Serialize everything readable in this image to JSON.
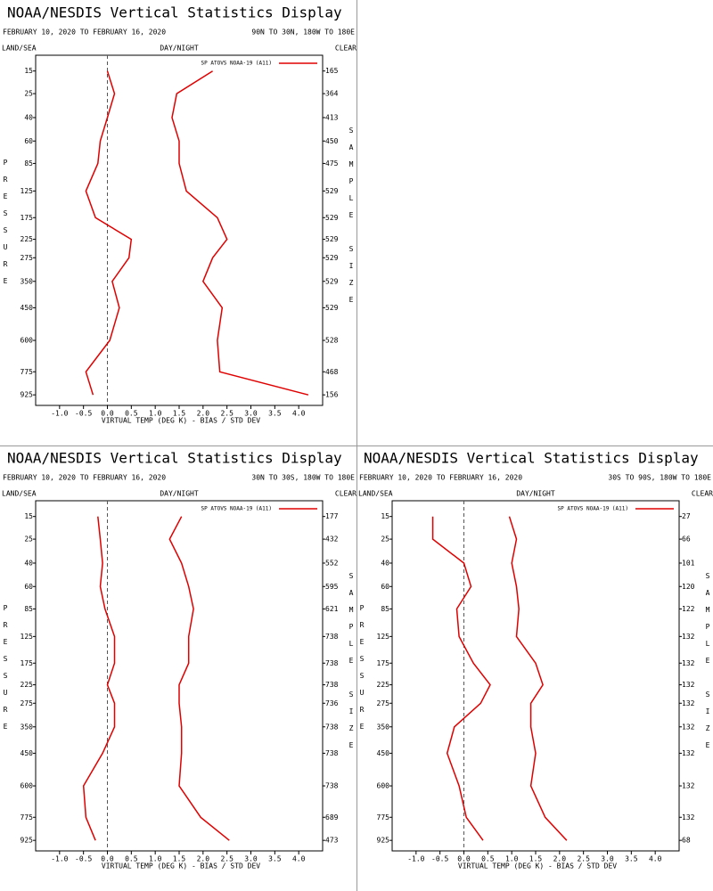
{
  "chart_data": [
    {
      "type": "line",
      "title": "NOAA/NESDIS Vertical Statistics Display",
      "period": "FEBRUARY 10, 2020 TO FEBRUARY 16, 2020",
      "region": "90N TO 30N, 180W TO 180E",
      "corner_labels": [
        "LAND/SEA",
        "DAY/NIGHT",
        "CLEAR"
      ],
      "xlabel": "VIRTUAL TEMP (DEG K) - BIAS / STD DEV",
      "ylabel": "PRESSURE",
      "y2label": "SAMPLE SIZE",
      "y": [
        15,
        25,
        40,
        60,
        85,
        125,
        175,
        225,
        275,
        350,
        450,
        600,
        775,
        925
      ],
      "yscale": "power",
      "ylim": [
        10,
        1000
      ],
      "yticks": [
        15,
        25,
        40,
        60,
        85,
        125,
        175,
        225,
        275,
        350,
        450,
        600,
        775,
        925
      ],
      "sample_sizes": [
        165,
        364,
        413,
        450,
        475,
        529,
        529,
        529,
        529,
        529,
        529,
        528,
        468,
        156
      ],
      "xlim": [
        -1.5,
        4.5
      ],
      "xticks": [
        {
          "value": -1,
          "label": "-1.0"
        },
        -0.5,
        {
          "value": 0,
          "label": "0.0"
        },
        0.5,
        {
          "value": 1,
          "label": "1.0"
        },
        1.5,
        {
          "value": 2,
          "label": "2.0"
        },
        2.5,
        {
          "value": 3,
          "label": "3.0"
        },
        3.5,
        {
          "value": 4,
          "label": "4.0"
        }
      ],
      "zero_line": true,
      "legend": "top-right",
      "series": [
        {
          "name": "SP ATOVS NOAA-19 (A11)",
          "color": "#e00000",
          "values": [
            0.0,
            0.15,
            0.0,
            -0.15,
            -0.2,
            -0.45,
            -0.25,
            0.5,
            0.45,
            0.1,
            0.25,
            0.05,
            -0.45,
            -0.3
          ]
        },
        {
          "color": "#e00000",
          "values": [
            2.2,
            1.45,
            1.35,
            1.5,
            1.5,
            1.65,
            2.3,
            2.5,
            2.2,
            2.0,
            2.4,
            2.3,
            2.35,
            4.2
          ]
        }
      ]
    },
    {
      "type": "line",
      "title": "NOAA/NESDIS Vertical Statistics Display",
      "period": "FEBRUARY 10, 2020 TO FEBRUARY 16, 2020",
      "region": "30N TO 30S, 180W TO 180E",
      "corner_labels": [
        "LAND/SEA",
        "DAY/NIGHT",
        "CLEAR"
      ],
      "xlabel": "VIRTUAL TEMP (DEG K) - BIAS / STD DEV",
      "ylabel": "PRESSURE",
      "y2label": "SAMPLE SIZE",
      "y": [
        15,
        25,
        40,
        60,
        85,
        125,
        175,
        225,
        275,
        350,
        450,
        600,
        775,
        925
      ],
      "yscale": "power",
      "ylim": [
        10,
        1000
      ],
      "yticks": [
        15,
        25,
        40,
        60,
        85,
        125,
        175,
        225,
        275,
        350,
        450,
        600,
        775,
        925
      ],
      "sample_sizes": [
        177,
        432,
        552,
        595,
        621,
        738,
        738,
        738,
        736,
        738,
        738,
        738,
        689,
        473
      ],
      "xlim": [
        -1.5,
        4.5
      ],
      "xticks": [
        {
          "value": -1,
          "label": "-1.0"
        },
        -0.5,
        {
          "value": 0,
          "label": "0.0"
        },
        0.5,
        {
          "value": 1,
          "label": "1.0"
        },
        1.5,
        {
          "value": 2,
          "label": "2.0"
        },
        2.5,
        {
          "value": 3,
          "label": "3.0"
        },
        3.5,
        {
          "value": 4,
          "label": "4.0"
        }
      ],
      "zero_line": true,
      "legend": "top-right",
      "series": [
        {
          "name": "SP ATOVS NOAA-19 (A11)",
          "color": "#e00000",
          "values": [
            -0.2,
            -0.15,
            -0.1,
            -0.15,
            -0.05,
            0.15,
            0.15,
            0.0,
            0.15,
            0.15,
            -0.1,
            -0.5,
            -0.45,
            -0.25
          ]
        },
        {
          "color": "#e00000",
          "values": [
            1.55,
            1.3,
            1.55,
            1.7,
            1.8,
            1.7,
            1.7,
            1.5,
            1.5,
            1.55,
            1.55,
            1.5,
            1.95,
            2.55
          ]
        }
      ]
    },
    {
      "type": "line",
      "title": "NOAA/NESDIS Vertical Statistics Display",
      "period": "FEBRUARY 10, 2020 TO FEBRUARY 16, 2020",
      "region": "30S TO 90S, 180W TO 180E",
      "corner_labels": [
        "LAND/SEA",
        "DAY/NIGHT",
        "CLEAR"
      ],
      "xlabel": "VIRTUAL TEMP (DEG K) - BIAS / STD DEV",
      "ylabel": "PRESSURE",
      "y2label": "SAMPLE SIZE",
      "y": [
        15,
        25,
        40,
        60,
        85,
        125,
        175,
        225,
        275,
        350,
        450,
        600,
        775,
        925
      ],
      "yscale": "power",
      "ylim": [
        10,
        1000
      ],
      "yticks": [
        15,
        25,
        40,
        60,
        85,
        125,
        175,
        225,
        275,
        350,
        450,
        600,
        775,
        925
      ],
      "sample_sizes": [
        27,
        66,
        101,
        120,
        122,
        132,
        132,
        132,
        132,
        132,
        132,
        132,
        132,
        68
      ],
      "xlim": [
        -1.5,
        4.5
      ],
      "xticks": [
        {
          "value": -1,
          "label": "-1.0"
        },
        -0.5,
        {
          "value": 0,
          "label": "0.0"
        },
        0.5,
        {
          "value": 1,
          "label": "1.0"
        },
        1.5,
        {
          "value": 2,
          "label": "2.0"
        },
        2.5,
        {
          "value": 3,
          "label": "3.0"
        },
        3.5,
        {
          "value": 4,
          "label": "4.0"
        }
      ],
      "zero_line": true,
      "legend": "top-right",
      "series": [
        {
          "name": "SP ATOVS NOAA-19 (A11)",
          "color": "#e00000",
          "values": [
            -0.65,
            -0.65,
            0.0,
            0.15,
            -0.15,
            -0.1,
            0.2,
            0.55,
            0.35,
            -0.2,
            -0.35,
            -0.1,
            0.05,
            0.4
          ]
        },
        {
          "color": "#e00000",
          "values": [
            0.95,
            1.1,
            1.0,
            1.1,
            1.15,
            1.1,
            1.5,
            1.65,
            1.4,
            1.4,
            1.5,
            1.4,
            1.7,
            2.15
          ]
        }
      ]
    }
  ]
}
